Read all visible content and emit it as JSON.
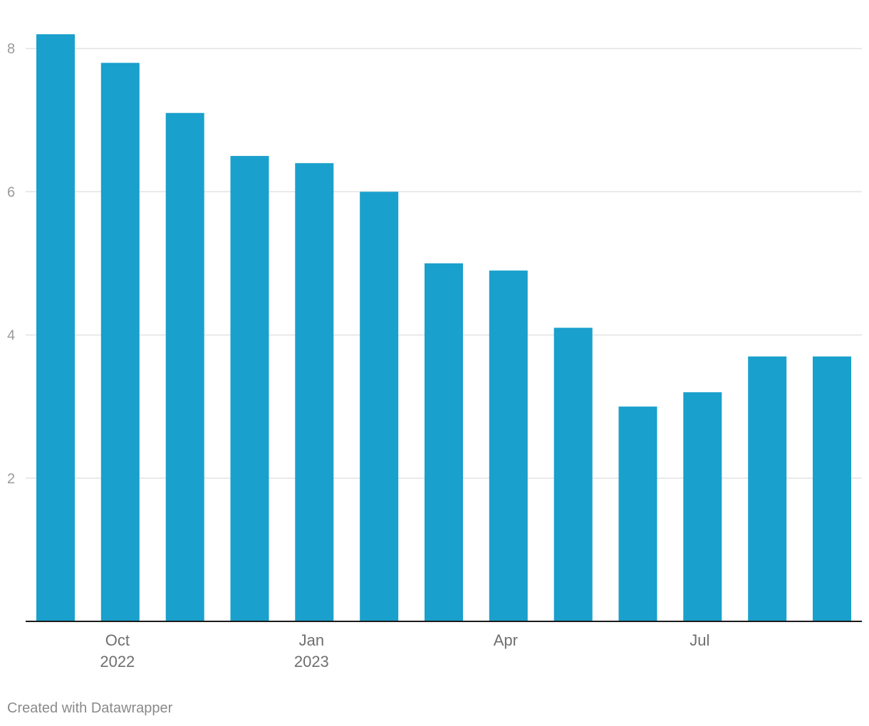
{
  "chart_data": {
    "type": "bar",
    "title": "",
    "xlabel": "",
    "ylabel": "",
    "categories": [
      "2022-09",
      "2022-10",
      "2022-11",
      "2022-12",
      "2023-01",
      "2023-02",
      "2023-03",
      "2023-04",
      "2023-05",
      "2023-06",
      "2023-07",
      "2023-08",
      "2023-09"
    ],
    "values": [
      8.2,
      7.8,
      7.1,
      6.5,
      6.4,
      6.0,
      5.0,
      4.9,
      4.1,
      3.0,
      3.2,
      3.7,
      3.7
    ],
    "ylim": [
      0,
      8.2
    ],
    "yticks": [
      2,
      4,
      6,
      8
    ],
    "xtick_labels": [
      {
        "category": "2022-10",
        "line1": "Oct",
        "line2": "2022"
      },
      {
        "category": "2023-01",
        "line1": "Jan",
        "line2": "2023"
      },
      {
        "category": "2023-04",
        "line1": "Apr",
        "line2": ""
      },
      {
        "category": "2023-07",
        "line1": "Jul",
        "line2": ""
      }
    ],
    "grid": true,
    "legend": "none",
    "bar_color": "#1aa0cc"
  },
  "footer": {
    "credit": "Created with Datawrapper"
  }
}
